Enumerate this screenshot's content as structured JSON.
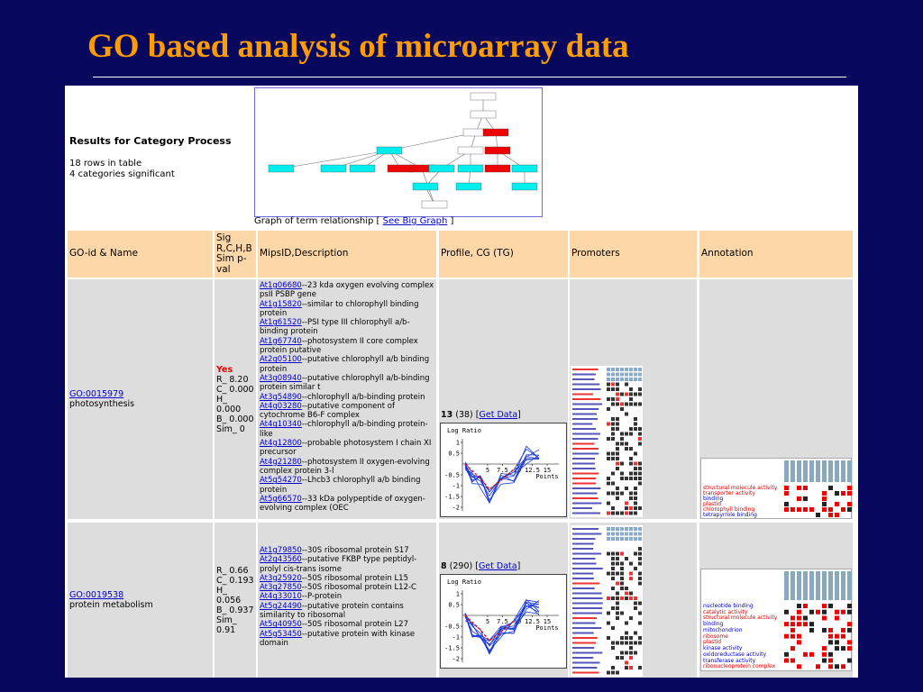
{
  "title": "GO based analysis of microarray data",
  "results": {
    "heading": "Results for Category Process",
    "rows_info": "18 rows in table",
    "significant": "4 categories significant",
    "graph_caption": "Graph of term relationship [",
    "graph_link": "See Big Graph",
    "graph_caption_end": "]"
  },
  "table": {
    "headers": [
      "GO-id & Name",
      "Sig R,C,H,B Sim p-val",
      "MipsID,Description",
      "Profile, CG (TG)",
      "Promoters",
      "Annotation"
    ],
    "rows": [
      {
        "go_id": "GO:0015979",
        "go_name": "photosynthesis",
        "sig_flag": "Yes",
        "sig": [
          "R_ 8.20",
          "C_ 0.000",
          "H_ 0.000",
          "B_ 0.000",
          "Sim_ 0"
        ],
        "genes": [
          {
            "id": "At1g06680",
            "desc": "--23 kda oxygen evolving complex psII PSBP gene"
          },
          {
            "id": "At1g15820",
            "desc": "--similar to chlorophyll binding protein"
          },
          {
            "id": "At1g61520",
            "desc": "--PSI type III chlorophyll a/b-binding protein"
          },
          {
            "id": "At1g67740",
            "desc": "--photosystem II core complex protein putative"
          },
          {
            "id": "At2g05100",
            "desc": "--putative chlorophyll a/b binding protein"
          },
          {
            "id": "At3g08940",
            "desc": "--putative chlorophyll a/b-binding protein similar t"
          },
          {
            "id": "At3g54890",
            "desc": "--chlorophyll a/b-binding protein"
          },
          {
            "id": "At4g03280",
            "desc": "--putative component of cytochrome B6-F complex"
          },
          {
            "id": "At4g10340",
            "desc": "--chlorophyll a/b-binding protein-like"
          },
          {
            "id": "At4g12800",
            "desc": "--probable photosystem I chain XI precursor"
          },
          {
            "id": "At4g21280",
            "desc": "--photosystem II oxygen-evolving complex protein 3-l"
          },
          {
            "id": "At5g54270",
            "desc": "--Lhcb3 chlorophyll a/b binding protein"
          },
          {
            "id": "At5g66570",
            "desc": "--33 kDa polypeptide of oxygen-evolving complex (OEC"
          }
        ],
        "profile": {
          "count": "13",
          "total": "(38) [",
          "link": "Get Data",
          "end": "]",
          "ylabel": "Log Ratio",
          "yticks": [
            1,
            0.5,
            -0.5,
            -1,
            -1.5,
            -2
          ],
          "xticks": [
            5,
            7.5,
            10,
            12.5,
            15
          ],
          "xlabel": "Points"
        },
        "annotation": [
          {
            "label": "structural molecule activity",
            "color": "#d00"
          },
          {
            "label": "transporter activity",
            "color": "#d00"
          },
          {
            "label": "binding",
            "color": "#00c"
          },
          {
            "label": "plastid",
            "color": "#d00"
          },
          {
            "label": "chlorophyll binding",
            "color": "#d00"
          },
          {
            "label": "tetrapyrrole binding",
            "color": "#00c"
          }
        ]
      },
      {
        "go_id": "GO:0019538",
        "go_name": "protein metabolism",
        "sig_flag": "",
        "sig": [
          "R_ 0.66",
          "C_ 0.193",
          "H_ 0.056",
          "B_ 0.937",
          "Sim_ 0.91"
        ],
        "genes": [
          {
            "id": "At1g79850",
            "desc": "--30S ribosomal protein S17"
          },
          {
            "id": "At2g43560",
            "desc": "--putative FKBP type peptidyl-prolyl cis-trans isome"
          },
          {
            "id": "At3g25920",
            "desc": "--50S ribosomal protein L15"
          },
          {
            "id": "At3g27850",
            "desc": "--50S ribosomal protein L12-C"
          },
          {
            "id": "At4g33010",
            "desc": "--P-protein"
          },
          {
            "id": "At5g24490",
            "desc": "--putative protein contains similarity to ribosomal"
          },
          {
            "id": "At5g40950",
            "desc": "--50S ribosomal protein L27"
          },
          {
            "id": "At5g53450",
            "desc": "--putative protein with kinase domain"
          }
        ],
        "profile": {
          "count": "8",
          "total": "(290) [",
          "link": "Get Data",
          "end": "]",
          "ylabel": "Log Ratio",
          "yticks": [
            1,
            0.5,
            -0.5,
            -1,
            -1.5,
            -2
          ],
          "xticks": [
            5,
            7.5,
            10,
            12.5,
            15
          ],
          "xlabel": "Points"
        },
        "annotation": [
          {
            "label": "nucleotide binding",
            "color": "#00c"
          },
          {
            "label": "catalytic activity",
            "color": "#d00"
          },
          {
            "label": "structural molecule activity",
            "color": "#d00"
          },
          {
            "label": "binding",
            "color": "#00c"
          },
          {
            "label": "mitochondrion",
            "color": "#00c"
          },
          {
            "label": "ribosome",
            "color": "#d00"
          },
          {
            "label": "plastid",
            "color": "#d00"
          },
          {
            "label": "kinase activity",
            "color": "#00c"
          },
          {
            "label": "oxidoreductase activity",
            "color": "#00c"
          },
          {
            "label": "transferase activity",
            "color": "#00c"
          },
          {
            "label": "ribonucleoprotein complex",
            "color": "#d00"
          }
        ]
      }
    ]
  }
}
